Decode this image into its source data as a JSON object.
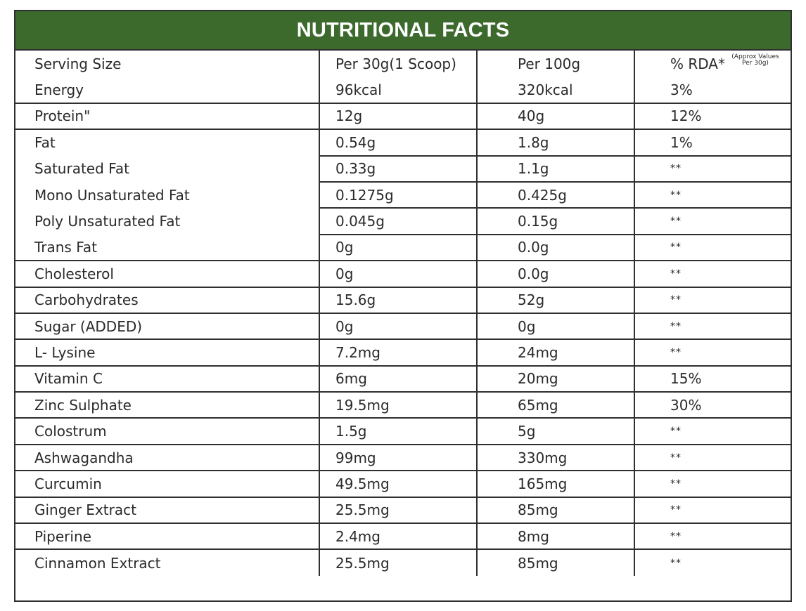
{
  "title": "NUTRITIONAL FACTS",
  "columns": {
    "serving_size": "Serving Size",
    "per_serving": "Per 30g(1 Scoop)",
    "per_100g": "Per 100g",
    "rda": "% RDA*",
    "rda_note": "(Approx Values Per 30g)"
  },
  "rows": [
    {
      "name": "Energy",
      "per_serving": "96kcal",
      "per_100g": "320kcal",
      "rda": "3%"
    },
    {
      "name": "Protein\"",
      "per_serving": "12g",
      "per_100g": "40g",
      "rda": "12%"
    },
    {
      "name": "Fat",
      "per_serving": "0.54g",
      "per_100g": "1.8g",
      "rda": "1%"
    },
    {
      "name": "Saturated Fat",
      "per_serving": "0.33g",
      "per_100g": "1.1g",
      "rda": "**"
    },
    {
      "name": "Mono Unsaturated Fat",
      "per_serving": "0.1275g",
      "per_100g": "0.425g",
      "rda": "**"
    },
    {
      "name": "Poly Unsaturated Fat",
      "per_serving": "0.045g",
      "per_100g": "0.15g",
      "rda": "**"
    },
    {
      "name": "Trans Fat",
      "per_serving": "0g",
      "per_100g": "0.0g",
      "rda": "**"
    },
    {
      "name": "Cholesterol",
      "per_serving": "0g",
      "per_100g": "0.0g",
      "rda": "**"
    },
    {
      "name": "Carbohydrates",
      "per_serving": "15.6g",
      "per_100g": "52g",
      "rda": "**"
    },
    {
      "name": "Sugar (ADDED)",
      "per_serving": "0g",
      "per_100g": "0g",
      "rda": "**"
    },
    {
      "name": "L- Lysine",
      "per_serving": "7.2mg",
      "per_100g": "24mg",
      "rda": "**"
    },
    {
      "name": "Vitamin C",
      "per_serving": "6mg",
      "per_100g": "20mg",
      "rda": "15%"
    },
    {
      "name": "Zinc Sulphate",
      "per_serving": "19.5mg",
      "per_100g": "65mg",
      "rda": "30%"
    },
    {
      "name": "Colostrum",
      "per_serving": "1.5g",
      "per_100g": "5g",
      "rda": "**"
    },
    {
      "name": "Ashwagandha",
      "per_serving": "99mg",
      "per_100g": "330mg",
      "rda": "**"
    },
    {
      "name": "Curcumin",
      "per_serving": "49.5mg",
      "per_100g": "165mg",
      "rda": "**"
    },
    {
      "name": "Ginger Extract",
      "per_serving": "25.5mg",
      "per_100g": "85mg",
      "rda": "**"
    },
    {
      "name": "Piperine",
      "per_serving": "2.4mg",
      "per_100g": "8mg",
      "rda": "**"
    },
    {
      "name": "Cinnamon Extract",
      "per_serving": "25.5mg",
      "per_100g": "85mg",
      "rda": "**"
    }
  ],
  "colors": {
    "header_bg": "#3c6a2c",
    "header_text": "#ffffff",
    "border": "#2f2f2f",
    "text": "#2a2a2a"
  }
}
